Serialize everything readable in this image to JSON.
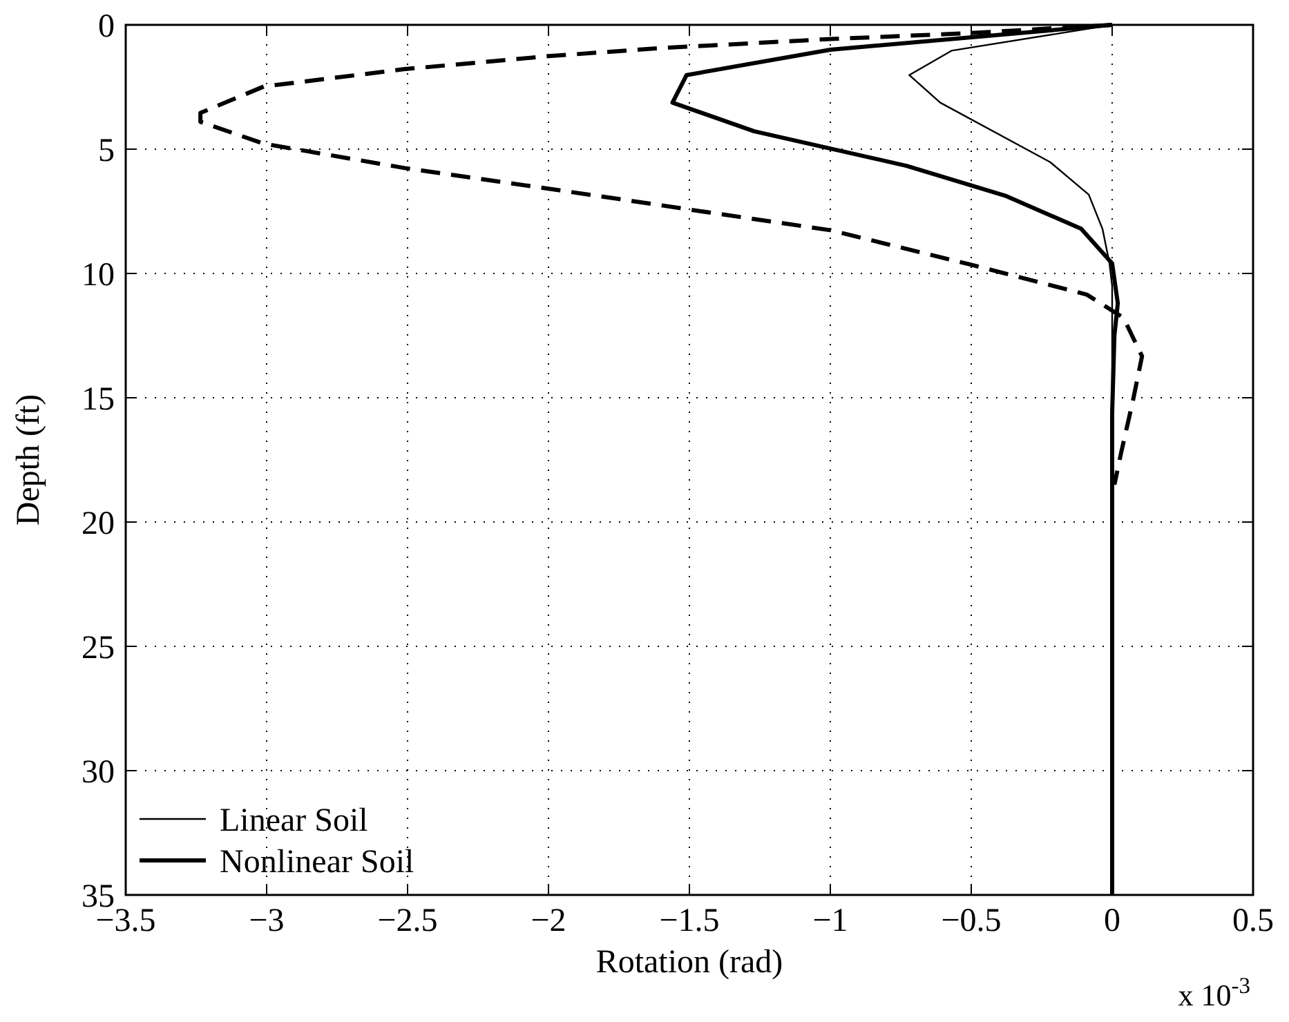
{
  "chart_data": {
    "type": "line",
    "xlabel": "Rotation (rad)",
    "ylabel": "Depth (ft)",
    "xlim": [
      -3.5,
      0.5
    ],
    "xticks": [
      -3.5,
      -3,
      -2.5,
      -2,
      -1.5,
      -1,
      -0.5,
      0,
      0.5
    ],
    "ylim": [
      35,
      0
    ],
    "yticks": [
      0,
      5,
      10,
      15,
      20,
      25,
      30,
      35
    ],
    "grid": true,
    "legend": "bottom left",
    "annotations": [
      "x 10$^{-3}$"
    ],
    "series": [
      {
        "name": "Linear Soil",
        "color": "#000000",
        "line_style": "solid",
        "x": [
          0,
          -0.57,
          -0.72,
          -0.61,
          -0.22,
          -0.083,
          -0.034,
          -0.01,
          0,
          0
        ],
        "values": [
          0,
          1.04,
          2.02,
          3.13,
          5.52,
          6.83,
          8.22,
          9.56,
          10.5,
          35
        ]
      },
      {
        "name": "Nonlinear Soil",
        "color": "#000000",
        "line_style": "solid",
        "x": [
          0,
          -1.0,
          -1.51,
          -1.56,
          -1.27,
          -0.73,
          -0.38,
          -0.11,
          0,
          0.02,
          0.008,
          0,
          0
        ],
        "values": [
          0,
          1.0,
          2.02,
          3.13,
          4.28,
          5.67,
          6.87,
          8.2,
          9.6,
          11.2,
          12.5,
          15.6,
          35
        ]
      },
      {
        "color": "#000000",
        "line_style": "dashed",
        "x": [
          0,
          -0.5,
          -1.0,
          -1.61,
          -2.0,
          -2.51,
          -3.01,
          -3.235,
          -3.235,
          -3.01,
          -2.51,
          -2.0,
          -1.61,
          -1.5,
          -1.0,
          -0.5,
          -0.09,
          0.04,
          0.106,
          0.074,
          0.033,
          0.008
        ],
        "values": [
          0,
          0.33,
          0.57,
          0.94,
          1.26,
          1.78,
          2.48,
          3.54,
          3.9,
          4.78,
          5.76,
          6.59,
          7.24,
          7.43,
          8.26,
          9.65,
          10.85,
          11.78,
          13.33,
          15.1,
          17.15,
          18.5
        ]
      }
    ]
  }
}
